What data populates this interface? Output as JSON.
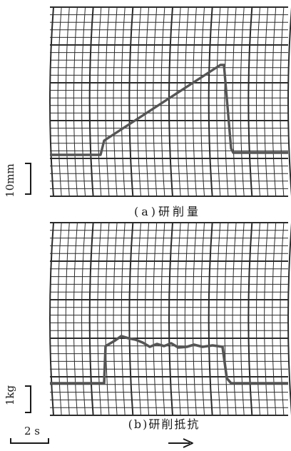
{
  "panel_a": {
    "caption": "(a)研削量",
    "scale_label": "10mm"
  },
  "panel_b": {
    "caption": "(b)研削抵抗",
    "scale_label": "1kg"
  },
  "time_scale_label": "2 s",
  "colors": {
    "grid": "#2b2b2b",
    "trace": "#555555",
    "text": "#1a1a1a",
    "background": "#ffffff"
  },
  "icons": {
    "direction": "right-arrow-icon"
  }
}
